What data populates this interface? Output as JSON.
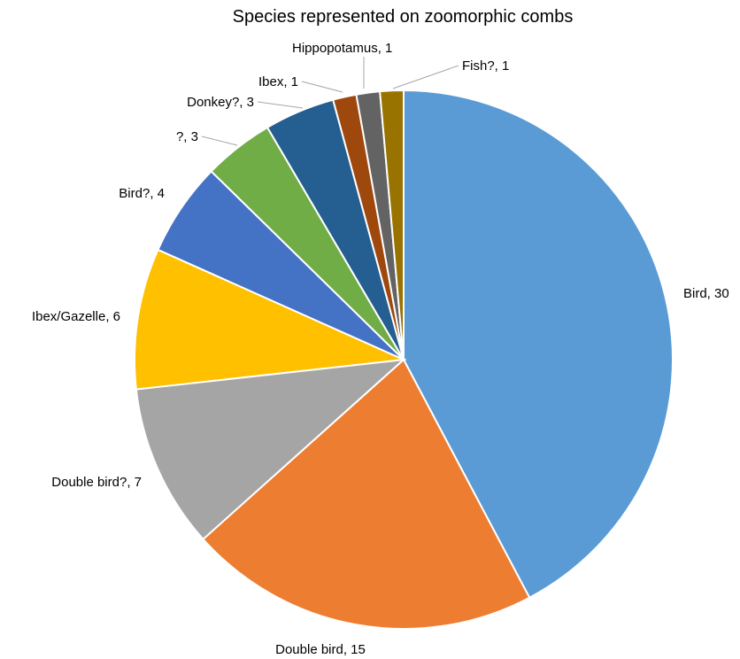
{
  "chart_data": {
    "type": "pie",
    "title": "Species represented on zoomorphic combs",
    "categories": [
      "Bird",
      "Double bird",
      "Double bird?",
      "Ibex/Gazelle",
      "Bird?",
      "?",
      "Donkey?",
      "Ibex",
      "Hippopotamus",
      "Fish?"
    ],
    "values": [
      30,
      15,
      7,
      6,
      4,
      3,
      3,
      1,
      1,
      1
    ],
    "data_labels": [
      "Bird, 30",
      "Double bird, 15",
      "Double bird?, 7",
      "Ibex/Gazelle, 6",
      "Bird?, 4",
      "?, 3",
      "Donkey?, 3",
      "Ibex, 1",
      "Hippopotamus, 1",
      "Fish?, 1"
    ],
    "colors": [
      "#5b9bd5",
      "#ed7d31",
      "#a5a5a5",
      "#ffc000",
      "#4472c4",
      "#70ad47",
      "#255e91",
      "#9e480e",
      "#636363",
      "#997300"
    ],
    "start_angle": "12 o'clock",
    "direction": "clockwise",
    "legend": "none"
  }
}
